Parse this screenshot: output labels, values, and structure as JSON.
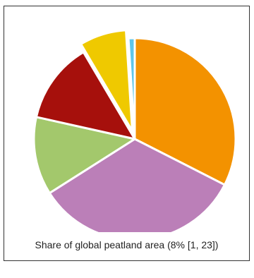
{
  "chart_data": {
    "type": "pie",
    "caption": "Share of global peatland area (8% [1, 23])",
    "slices": [
      {
        "value": 32.5,
        "color": "#f39200",
        "exploded": false
      },
      {
        "value": 33.5,
        "color": "#bb7fb8",
        "exploded": false
      },
      {
        "value": 12.5,
        "color": "#a3c86c",
        "exploded": false
      },
      {
        "value": 13.0,
        "color": "#a6100c",
        "exploded": false
      },
      {
        "value": 7.5,
        "color": "#efc900",
        "exploded": true
      },
      {
        "value": 1.0,
        "color": "#5ec6ea",
        "exploded": false
      }
    ],
    "start_angle_deg": 0,
    "direction": "clockwise"
  }
}
